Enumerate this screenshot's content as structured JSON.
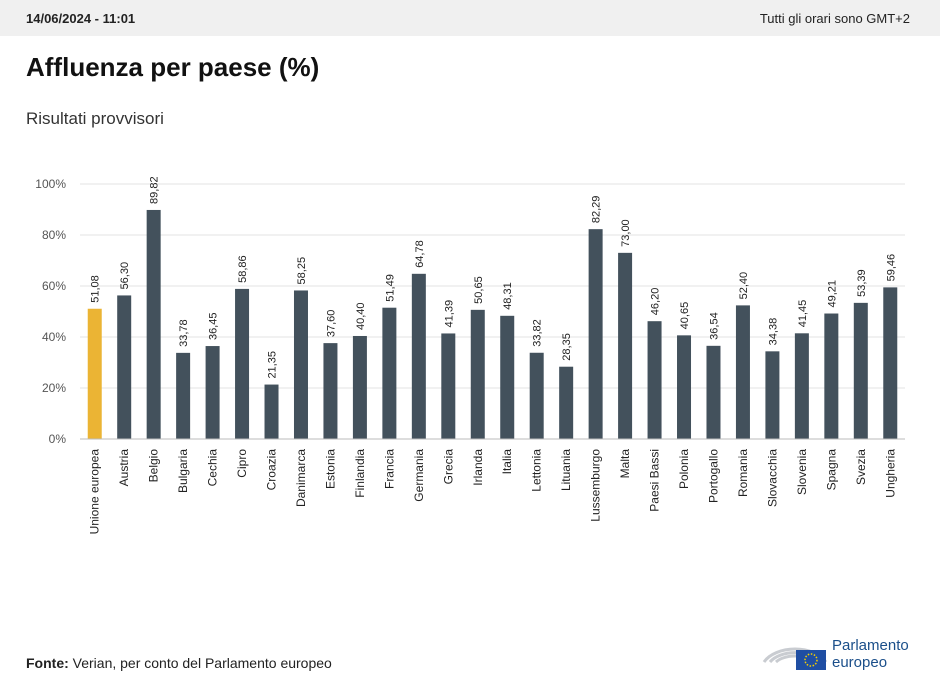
{
  "header": {
    "timestamp": "14/06/2024 - 11:01",
    "timezone_note": "Tutti gli orari sono GMT+2"
  },
  "title": "Affluenza per paese (%)",
  "subtitle": "Risultati provvisori",
  "source_label": "Fonte:",
  "source_text": " Verian, per conto del Parlamento europeo",
  "logo": {
    "line1": "Parlamento",
    "line2": "europeo",
    "icon": "eu-flag-hemicycle-icon"
  },
  "colors": {
    "highlight": "#EBB434",
    "bar": "#43515C",
    "grid": "#e3e3e3",
    "axis_text": "#555555"
  },
  "chart_data": {
    "type": "bar",
    "categories": [
      "Unione europea",
      "Austria",
      "Belgio",
      "Bulgaria",
      "Cechia",
      "Cipro",
      "Croazia",
      "Danimarca",
      "Estonia",
      "Finlandia",
      "Francia",
      "Germania",
      "Grecia",
      "Irlanda",
      "Italia",
      "Lettonia",
      "Lituania",
      "Lussemburgo",
      "Malta",
      "Paesi Bassi",
      "Polonia",
      "Portogallo",
      "Romania",
      "Slovacchia",
      "Slovenia",
      "Spagna",
      "Svezia",
      "Ungheria"
    ],
    "values": [
      51.08,
      56.3,
      89.82,
      33.78,
      36.45,
      58.86,
      21.35,
      58.25,
      37.6,
      40.4,
      51.49,
      64.78,
      41.39,
      50.65,
      48.31,
      33.82,
      28.35,
      82.29,
      73.0,
      46.2,
      40.65,
      36.54,
      52.4,
      34.38,
      41.45,
      49.21,
      53.39,
      59.46
    ],
    "value_labels": [
      "51,08",
      "56,30",
      "89,82",
      "33,78",
      "36,45",
      "58,86",
      "21,35",
      "58,25",
      "37,60",
      "40,40",
      "51,49",
      "64,78",
      "41,39",
      "50,65",
      "48,31",
      "33,82",
      "28,35",
      "82,29",
      "73,00",
      "46,20",
      "40,65",
      "36,54",
      "52,40",
      "34,38",
      "41,45",
      "49,21",
      "53,39",
      "59,46"
    ],
    "highlight_index": 0,
    "yticks": [
      0,
      20,
      40,
      60,
      80,
      100
    ],
    "ytick_labels": [
      "0%",
      "20%",
      "40%",
      "60%",
      "80%",
      "100%"
    ],
    "ylim": [
      0,
      100
    ],
    "grid": true
  }
}
